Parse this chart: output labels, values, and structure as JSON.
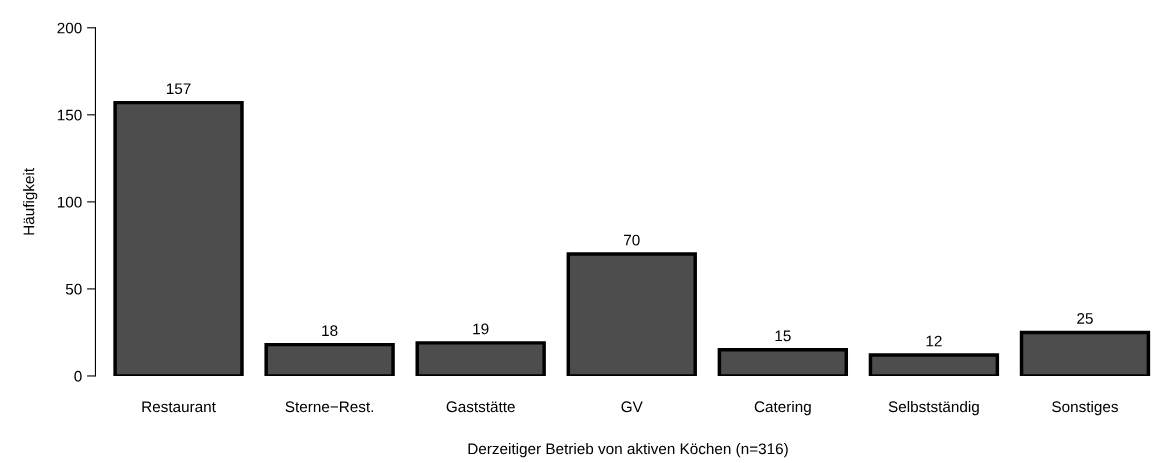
{
  "chart_data": {
    "type": "bar",
    "xlabel": "Derzeitiger Betrieb von aktiven Köchen (n=316)",
    "ylabel": "Häufigkeit",
    "categories": [
      "Restaurant",
      "Sterne−Rest.",
      "Gaststätte",
      "GV",
      "Catering",
      "Selbstständig",
      "Sonstiges"
    ],
    "values": [
      157,
      18,
      19,
      70,
      15,
      12,
      25
    ],
    "color": "#4d4d4d",
    "ylim": [
      0,
      200
    ],
    "yticks": [
      0,
      50,
      100,
      150,
      200
    ],
    "data_labels": true,
    "grid": false,
    "legend": false
  }
}
